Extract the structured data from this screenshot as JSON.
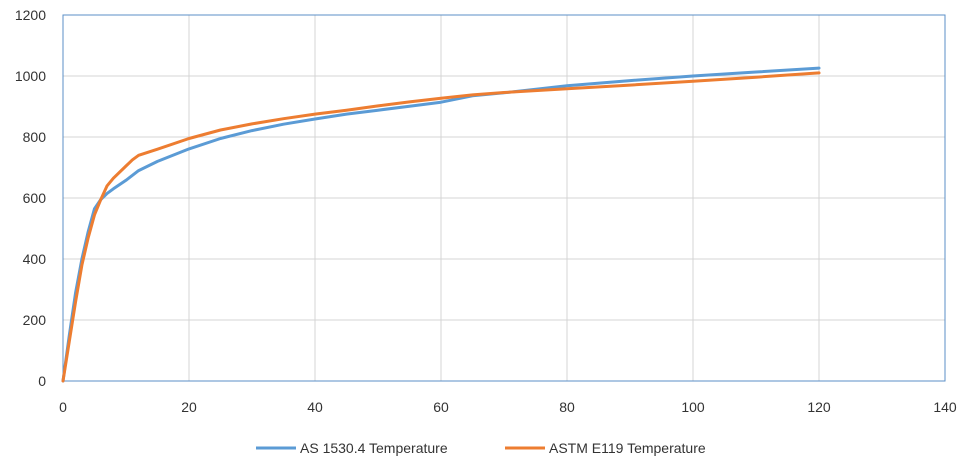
{
  "chart_data": {
    "type": "line",
    "title": "",
    "xlabel": "",
    "ylabel": "",
    "xlim": [
      0,
      140
    ],
    "ylim": [
      0,
      1200
    ],
    "x_ticks": [
      "0",
      "20",
      "40",
      "60",
      "80",
      "100",
      "120",
      "140"
    ],
    "y_ticks": [
      "0",
      "200",
      "400",
      "600",
      "800",
      "1000",
      "1200"
    ],
    "grid": true,
    "legend_position": "bottom",
    "series": [
      {
        "name": "AS 1530.4 Temperature",
        "color": "#5b9bd5",
        "points": [
          [
            0,
            0
          ],
          [
            1,
            150
          ],
          [
            2,
            290
          ],
          [
            3,
            400
          ],
          [
            4,
            490
          ],
          [
            5,
            565
          ],
          [
            6,
            595
          ],
          [
            7,
            615
          ],
          [
            8,
            630
          ],
          [
            10,
            658
          ],
          [
            12,
            690
          ],
          [
            15,
            720
          ],
          [
            20,
            761
          ],
          [
            25,
            795
          ],
          [
            30,
            821
          ],
          [
            35,
            842
          ],
          [
            40,
            859
          ],
          [
            45,
            875
          ],
          [
            50,
            888
          ],
          [
            55,
            901
          ],
          [
            60,
            914
          ],
          [
            65,
            935
          ],
          [
            70,
            945
          ],
          [
            80,
            968
          ],
          [
            90,
            985
          ],
          [
            100,
            1000
          ],
          [
            110,
            1013
          ],
          [
            120,
            1026
          ]
        ]
      },
      {
        "name": "ASTM E119 Temperature",
        "color": "#ed7d31",
        "points": [
          [
            0,
            0
          ],
          [
            1,
            130
          ],
          [
            2,
            260
          ],
          [
            3,
            380
          ],
          [
            4,
            470
          ],
          [
            5,
            545
          ],
          [
            6,
            595
          ],
          [
            7,
            640
          ],
          [
            8,
            665
          ],
          [
            10,
            705
          ],
          [
            11,
            725
          ],
          [
            12,
            740
          ],
          [
            15,
            760
          ],
          [
            20,
            795
          ],
          [
            25,
            823
          ],
          [
            30,
            843
          ],
          [
            35,
            860
          ],
          [
            40,
            875
          ],
          [
            45,
            888
          ],
          [
            50,
            902
          ],
          [
            55,
            915
          ],
          [
            60,
            927
          ],
          [
            65,
            938
          ],
          [
            70,
            946
          ],
          [
            80,
            958
          ],
          [
            90,
            970
          ],
          [
            100,
            983
          ],
          [
            110,
            996
          ],
          [
            120,
            1010
          ]
        ]
      }
    ]
  }
}
